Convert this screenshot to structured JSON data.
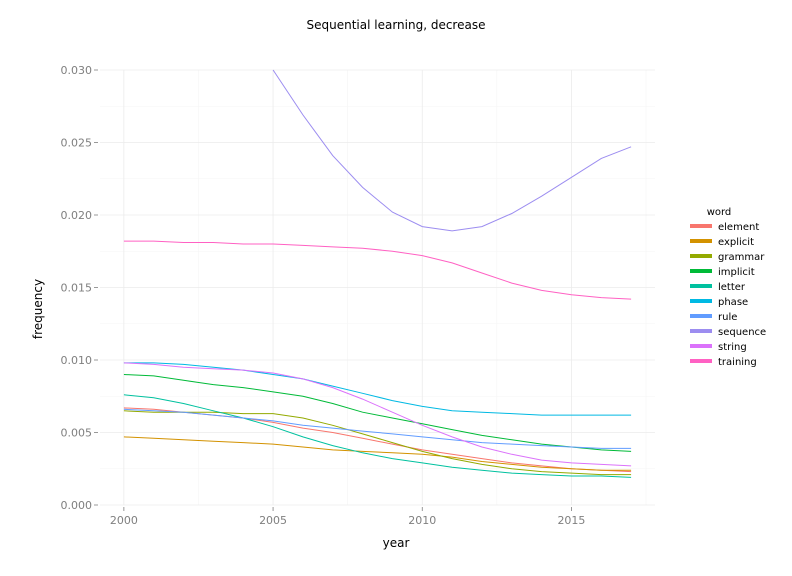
{
  "chart_data": {
    "type": "line",
    "title": "Sequential learning, decrease",
    "xlabel": "year",
    "ylabel": "frequency",
    "xlim": [
      1999.2,
      2017.8
    ],
    "ylim": [
      0,
      0.03
    ],
    "xticks": [
      2000,
      2005,
      2010,
      2015
    ],
    "xtick_labels": [
      "2000",
      "2005",
      "2010",
      "2015"
    ],
    "yticks": [
      0,
      0.005,
      0.01,
      0.015,
      0.02,
      0.025,
      0.03
    ],
    "ytick_labels": [
      "0.000",
      "0.005",
      "0.010",
      "0.015",
      "0.020",
      "0.025",
      "0.030"
    ],
    "grid": true,
    "legend": {
      "title": "word",
      "position": "right"
    },
    "x": [
      2000,
      2001,
      2002,
      2003,
      2004,
      2005,
      2006,
      2007,
      2008,
      2009,
      2010,
      2011,
      2012,
      2013,
      2014,
      2015,
      2016,
      2017
    ],
    "series": [
      {
        "name": "element",
        "color": "#F8766D",
        "values": [
          0.0067,
          0.0066,
          0.0064,
          0.0062,
          0.006,
          0.0057,
          0.0053,
          0.005,
          0.0046,
          0.0042,
          0.0038,
          0.0035,
          0.0032,
          0.0029,
          0.0027,
          0.0025,
          0.0024,
          0.0023
        ]
      },
      {
        "name": "explicit",
        "color": "#D39200",
        "values": [
          0.0047,
          0.0046,
          0.0045,
          0.0044,
          0.0043,
          0.0042,
          0.004,
          0.0038,
          0.0037,
          0.0036,
          0.0035,
          0.0033,
          0.003,
          0.0028,
          0.0026,
          0.0025,
          0.0024,
          0.0024
        ]
      },
      {
        "name": "grammar",
        "color": "#93AA00",
        "values": [
          0.0065,
          0.0064,
          0.0064,
          0.0064,
          0.0063,
          0.0063,
          0.006,
          0.0055,
          0.0049,
          0.0043,
          0.0037,
          0.0032,
          0.0028,
          0.0025,
          0.0023,
          0.0022,
          0.0021,
          0.0021
        ]
      },
      {
        "name": "implicit",
        "color": "#00BA38",
        "values": [
          0.009,
          0.0089,
          0.0086,
          0.0083,
          0.0081,
          0.0078,
          0.0075,
          0.007,
          0.0064,
          0.006,
          0.0056,
          0.0052,
          0.0048,
          0.0045,
          0.0042,
          0.004,
          0.0038,
          0.0037
        ]
      },
      {
        "name": "letter",
        "color": "#00C19F",
        "values": [
          0.0076,
          0.0074,
          0.007,
          0.0065,
          0.006,
          0.0054,
          0.0047,
          0.0041,
          0.0036,
          0.0032,
          0.0029,
          0.0026,
          0.0024,
          0.0022,
          0.0021,
          0.002,
          0.002,
          0.0019
        ]
      },
      {
        "name": "phase",
        "color": "#00B9E3",
        "values": [
          0.0098,
          0.0098,
          0.0097,
          0.0095,
          0.0093,
          0.009,
          0.0087,
          0.0082,
          0.0077,
          0.0072,
          0.0068,
          0.0065,
          0.0064,
          0.0063,
          0.0062,
          0.0062,
          0.0062,
          0.0062
        ]
      },
      {
        "name": "rule",
        "color": "#619CFF",
        "values": [
          0.0066,
          0.0065,
          0.0064,
          0.0062,
          0.006,
          0.0058,
          0.0055,
          0.0053,
          0.0051,
          0.0049,
          0.0047,
          0.0045,
          0.0043,
          0.0042,
          0.0041,
          0.004,
          0.0039,
          0.0039
        ]
      },
      {
        "name": "sequence",
        "color": "#9C8DF0",
        "values": [
          null,
          null,
          null,
          null,
          null,
          0.03,
          0.0269,
          0.0241,
          0.0219,
          0.0202,
          0.0192,
          0.0189,
          0.0192,
          0.0201,
          0.0213,
          0.0226,
          0.0239,
          0.0247
        ]
      },
      {
        "name": "string",
        "color": "#DB72FB",
        "values": [
          0.0098,
          0.0097,
          0.0095,
          0.0094,
          0.0093,
          0.0091,
          0.0087,
          0.0081,
          0.0073,
          0.0064,
          0.0055,
          0.0047,
          0.004,
          0.0035,
          0.0031,
          0.0029,
          0.0028,
          0.0027
        ]
      },
      {
        "name": "training",
        "color": "#FF61C3",
        "values": [
          0.0182,
          0.0182,
          0.0181,
          0.0181,
          0.018,
          0.018,
          0.0179,
          0.0178,
          0.0177,
          0.0175,
          0.0172,
          0.0167,
          0.016,
          0.0153,
          0.0148,
          0.0145,
          0.0143,
          0.0142
        ]
      }
    ]
  }
}
